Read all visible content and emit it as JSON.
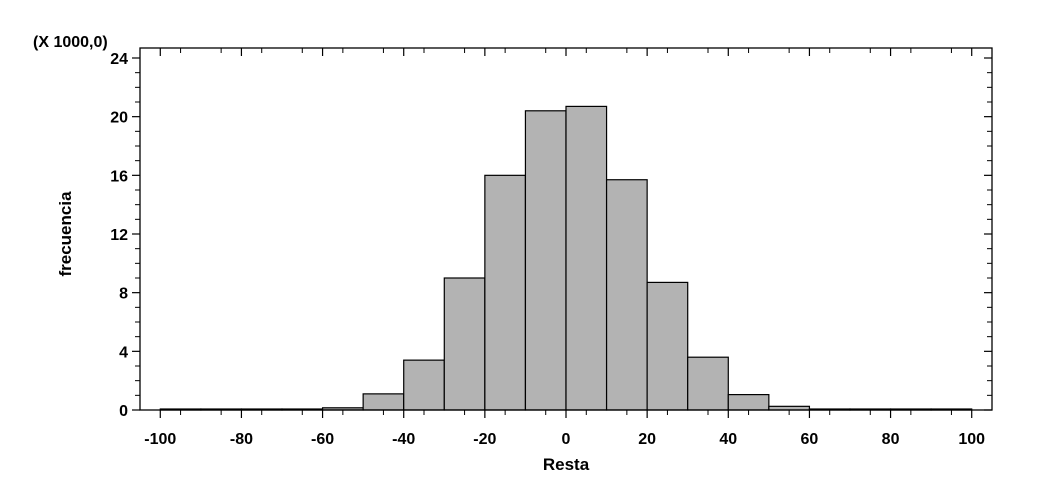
{
  "chart_data": {
    "type": "bar",
    "xlabel": "Resta",
    "ylabel": "frecuencia",
    "y_scale_note": "(X 1000,0)",
    "xlim": [
      -105,
      105
    ],
    "ylim": [
      0,
      24
    ],
    "x_ticks": [
      -100,
      -80,
      -60,
      -40,
      -20,
      0,
      20,
      40,
      60,
      80,
      100
    ],
    "y_ticks": [
      0,
      4,
      8,
      12,
      16,
      20,
      24
    ],
    "bin_width": 10,
    "bins": [
      {
        "from": -100,
        "to": -90,
        "value": 0.0
      },
      {
        "from": -90,
        "to": -80,
        "value": 0.0
      },
      {
        "from": -80,
        "to": -70,
        "value": 0.0
      },
      {
        "from": -70,
        "to": -60,
        "value": 0.05
      },
      {
        "from": -60,
        "to": -50,
        "value": 0.15
      },
      {
        "from": -50,
        "to": -40,
        "value": 1.1
      },
      {
        "from": -40,
        "to": -30,
        "value": 3.4
      },
      {
        "from": -30,
        "to": -20,
        "value": 9.0
      },
      {
        "from": -20,
        "to": -10,
        "value": 16.0
      },
      {
        "from": -10,
        "to": 0,
        "value": 20.4
      },
      {
        "from": 0,
        "to": 10,
        "value": 20.7
      },
      {
        "from": 10,
        "to": 20,
        "value": 15.7
      },
      {
        "from": 20,
        "to": 30,
        "value": 8.7
      },
      {
        "from": 30,
        "to": 40,
        "value": 3.6
      },
      {
        "from": 40,
        "to": 50,
        "value": 1.05
      },
      {
        "from": 50,
        "to": 60,
        "value": 0.25
      },
      {
        "from": 60,
        "to": 70,
        "value": 0.05
      },
      {
        "from": 70,
        "to": 80,
        "value": 0.0
      },
      {
        "from": 80,
        "to": 90,
        "value": 0.0
      },
      {
        "from": 90,
        "to": 100,
        "value": 0.0
      }
    ],
    "bar_color": "#b3b3b3",
    "edge_color": "#000000",
    "grid": false
  }
}
